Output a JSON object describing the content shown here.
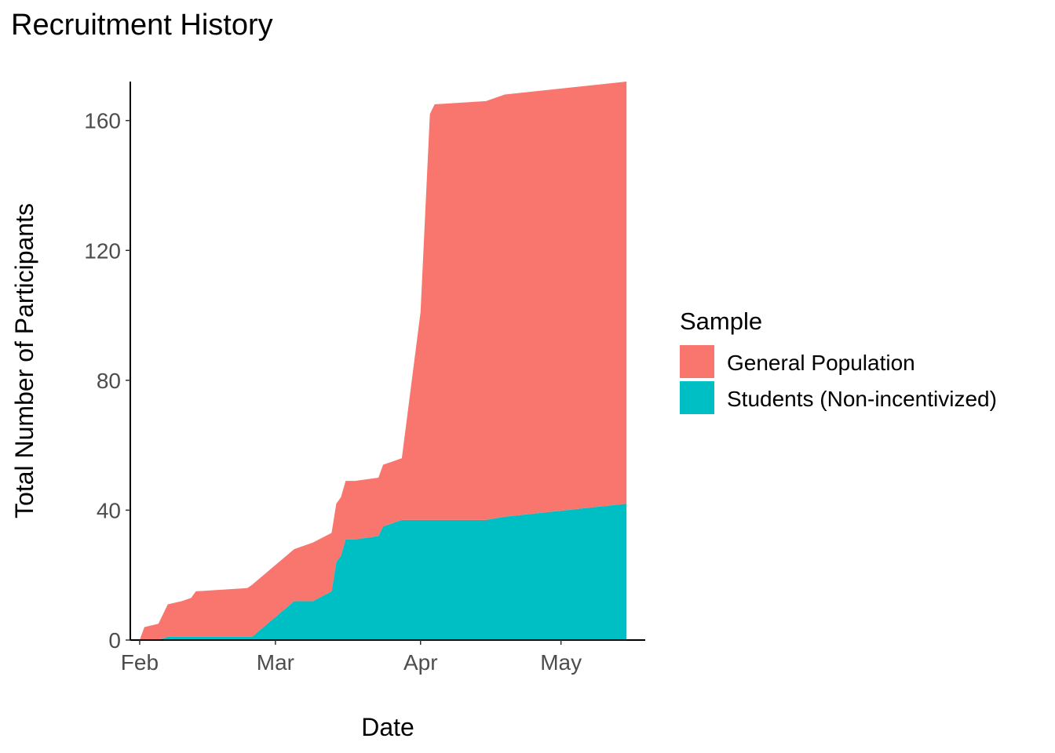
{
  "chart_data": {
    "type": "area",
    "stacked": true,
    "title": "Recruitment History",
    "xlabel": "Date",
    "ylabel": "Total Number of Participants",
    "x_tick_labels": [
      "Feb",
      "Mar",
      "Apr",
      "May"
    ],
    "x_tick_dates": [
      "2024-02-01",
      "2024-03-01",
      "2024-04-01",
      "2024-05-01"
    ],
    "y_ticks": [
      0,
      40,
      80,
      120,
      160
    ],
    "y_tick_labels": [
      "0",
      "40",
      "80",
      "120",
      "160"
    ],
    "xlim": [
      "2024-01-30",
      "2024-05-19"
    ],
    "ylim": [
      0,
      172
    ],
    "grid": false,
    "legend": {
      "title": "Sample",
      "position": "right"
    },
    "x": [
      "2024-02-01",
      "2024-02-02",
      "2024-02-05",
      "2024-02-07",
      "2024-02-10",
      "2024-02-12",
      "2024-02-13",
      "2024-02-24",
      "2024-02-25",
      "2024-03-05",
      "2024-03-09",
      "2024-03-13",
      "2024-03-14",
      "2024-03-15",
      "2024-03-16",
      "2024-03-18",
      "2024-03-23",
      "2024-03-24",
      "2024-03-28",
      "2024-04-01",
      "2024-04-03",
      "2024-04-04",
      "2024-04-15",
      "2024-04-19",
      "2024-05-15"
    ],
    "series": [
      {
        "name": "Students (Non-incentivized)",
        "color": "#00BFC4",
        "values": [
          0,
          0,
          0,
          1,
          1,
          1,
          1,
          1,
          1,
          12,
          12,
          15,
          24,
          26,
          31,
          31,
          32,
          35,
          37,
          37,
          37,
          37,
          37,
          38,
          42
        ]
      },
      {
        "name": "General Population",
        "color": "#F8766D",
        "values": [
          0,
          4,
          5,
          10,
          11,
          12,
          14,
          15,
          16,
          16,
          18,
          18,
          18,
          18,
          18,
          18,
          18,
          19,
          19,
          64,
          125,
          128,
          129,
          130,
          130
        ]
      }
    ]
  }
}
